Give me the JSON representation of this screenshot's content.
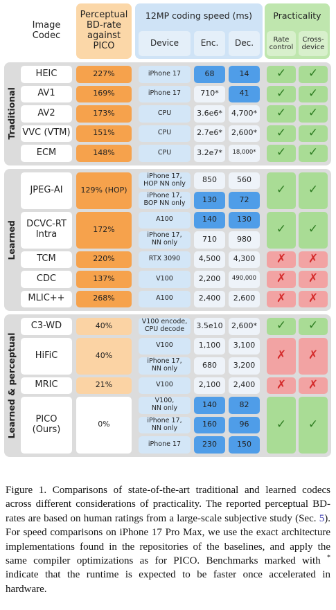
{
  "header": {
    "codec": "Image\nCodec",
    "bd_rate": "Perceptual BD-rate against PICO",
    "speed": "12MP coding speed (ms)",
    "device": "Device",
    "enc": "Enc.",
    "dec": "Dec.",
    "practicality": "Practicality",
    "rate_control": "Rate\ncontrol",
    "cross_device": "Cross-\ndevice"
  },
  "groups": [
    {
      "label": "Traditional",
      "rows": [
        {
          "codec": "HEIC",
          "bd_rate": "227%",
          "bd_color": "#f6a24c",
          "speeds": [
            {
              "device": "iPhone 17",
              "enc": "68",
              "dec": "14",
              "highlight": [
                true,
                true
              ]
            }
          ],
          "rate_control": "✓",
          "cross_device": "✓"
        },
        {
          "codec": "AV1",
          "bd_rate": "169%",
          "bd_color": "#f6a24c",
          "speeds": [
            {
              "device": "iPhone 17",
              "enc": "710*",
              "dec": "41",
              "highlight": [
                false,
                true
              ]
            }
          ],
          "rate_control": "✓",
          "cross_device": "✓"
        },
        {
          "codec": "AV2",
          "bd_rate": "173%",
          "bd_color": "#f6a24c",
          "speeds": [
            {
              "device": "CPU",
              "enc": "3.6e6*",
              "dec": "4,700*",
              "highlight": [
                false,
                false
              ]
            }
          ],
          "rate_control": "✓",
          "cross_device": "✓"
        },
        {
          "codec": "VVC (VTM)",
          "bd_rate": "151%",
          "bd_color": "#f6a24c",
          "speeds": [
            {
              "device": "CPU",
              "enc": "2.7e6*",
              "dec": "2,600*",
              "highlight": [
                false,
                false
              ]
            }
          ],
          "rate_control": "✓",
          "cross_device": "✓"
        },
        {
          "codec": "ECM",
          "bd_rate": "148%",
          "bd_color": "#f6a24c",
          "speeds": [
            {
              "device": "CPU",
              "enc": "3.2e7*",
              "dec": "18,000*",
              "highlight": [
                false,
                false
              ]
            }
          ],
          "rate_control": "✓",
          "cross_device": "✓"
        }
      ]
    },
    {
      "label": "Learned",
      "rows": [
        {
          "codec": "JPEG-AI",
          "bd_rate": "129% (HOP)",
          "bd_color": "#f6a24c",
          "speeds": [
            {
              "device": "iPhone 17,\nHOP NN only",
              "enc": "850",
              "dec": "560",
              "highlight": [
                false,
                false
              ]
            },
            {
              "device": "iPhone 17,\nBOP NN only",
              "enc": "130",
              "dec": "72",
              "highlight": [
                true,
                true
              ]
            }
          ],
          "rate_control": "✓",
          "cross_device": "✓"
        },
        {
          "codec": "DCVC-RT\nIntra",
          "bd_rate": "172%",
          "bd_color": "#f6a24c",
          "speeds": [
            {
              "device": "A100",
              "enc": "140",
              "dec": "130",
              "highlight": [
                true,
                true
              ]
            },
            {
              "device": "iPhone 17,\nNN only",
              "enc": "710",
              "dec": "980",
              "highlight": [
                false,
                false
              ]
            }
          ],
          "rate_control": "✓",
          "cross_device": "✓"
        },
        {
          "codec": "TCM",
          "bd_rate": "220%",
          "bd_color": "#f6a24c",
          "speeds": [
            {
              "device": "RTX 3090",
              "enc": "4,500",
              "dec": "4,300",
              "highlight": [
                false,
                false
              ]
            }
          ],
          "rate_control": "✗",
          "cross_device": "✗"
        },
        {
          "codec": "CDC",
          "bd_rate": "137%",
          "bd_color": "#f6a24c",
          "speeds": [
            {
              "device": "V100",
              "enc": "2,200",
              "dec": "490,000",
              "highlight": [
                false,
                false
              ]
            }
          ],
          "rate_control": "✗",
          "cross_device": "✗"
        },
        {
          "codec": "MLIC++",
          "bd_rate": "268%",
          "bd_color": "#f6a24c",
          "speeds": [
            {
              "device": "A100",
              "enc": "2,400",
              "dec": "2,600",
              "highlight": [
                false,
                false
              ]
            }
          ],
          "rate_control": "✗",
          "cross_device": "✗"
        }
      ]
    },
    {
      "label": "Learned & perceptual",
      "rows": [
        {
          "codec": "C3-WD",
          "bd_rate": "40%",
          "bd_color": "#fbd3a4",
          "speeds": [
            {
              "device": "V100 encode,\nCPU decode",
              "enc": "3.5e10",
              "dec": "2,600*",
              "highlight": [
                false,
                false
              ]
            }
          ],
          "rate_control": "✓",
          "cross_device": "✓"
        },
        {
          "codec": "HiFiC",
          "bd_rate": "40%",
          "bd_color": "#fbd3a4",
          "speeds": [
            {
              "device": "V100",
              "enc": "1,100",
              "dec": "3,100",
              "highlight": [
                false,
                false
              ]
            },
            {
              "device": "iPhone 17,\nNN only",
              "enc": "680",
              "dec": "3,200",
              "highlight": [
                false,
                false
              ]
            }
          ],
          "rate_control": "✗",
          "cross_device": "✗"
        },
        {
          "codec": "MRIC",
          "bd_rate": "21%",
          "bd_color": "#fbd3a4",
          "speeds": [
            {
              "device": "V100",
              "enc": "2,100",
              "dec": "2,400",
              "highlight": [
                false,
                false
              ]
            }
          ],
          "rate_control": "✗",
          "cross_device": "✗"
        },
        {
          "codec": "PICO\n(Ours)",
          "bd_rate": "0%",
          "bd_color": "#ffffff",
          "speeds": [
            {
              "device": "V100,\nNN only",
              "enc": "140",
              "dec": "82",
              "highlight": [
                true,
                true
              ]
            },
            {
              "device": "iPhone 17,\nNN only",
              "enc": "160",
              "dec": "96",
              "highlight": [
                true,
                true
              ]
            },
            {
              "device": "iPhone 17",
              "enc": "230",
              "dec": "150",
              "highlight": [
                true,
                true
              ]
            }
          ],
          "rate_control": "✓",
          "cross_device": "✓"
        }
      ]
    }
  ],
  "caption": [
    "Figure 1. Comparisons of state-of-the-art traditional and learned codecs across different considerations of practicality. The reported perceptual BD-rates are based on human ratings from a large-scale subjective study (Sec. ",
    "5",
    "). For speed comparisons on iPhone 17 Pro Max, we use the exact architecture implementations found in the repositories of the baselines, and apply the same compiler optimizations as for PICO. Benchmarks marked with ",
    "*",
    " indicate that the runtime is expected to be faster once accelerated in hardware."
  ]
}
